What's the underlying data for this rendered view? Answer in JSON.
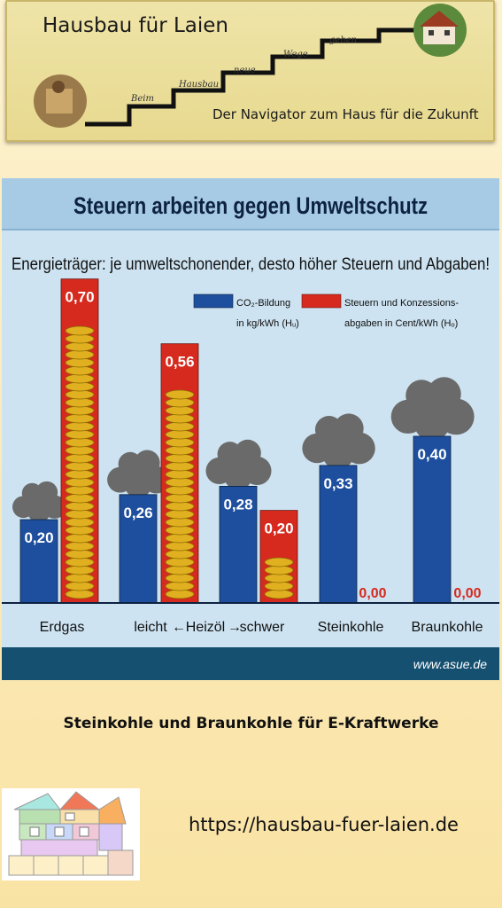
{
  "header": {
    "title": "Hausbau für Laien",
    "subtitle": "Der Navigator zum Haus für die Zukunft",
    "stairs": [
      "Beim",
      "Hausbau",
      "neue",
      "Wege",
      "gehen"
    ]
  },
  "chart_data": {
    "type": "bar",
    "title": "Steuern arbeiten gegen Umweltschutz",
    "subtitle": "Energieträger: je umweltschonender, desto höher Steuern und Abgaben!",
    "categories": [
      "Erdgas",
      "leicht",
      "schwer",
      "Steinkohle",
      "Braunkohle"
    ],
    "category_labels": [
      "Erdgas",
      "leicht",
      "Heizöl",
      "schwer",
      "Steinkohle",
      "Braunkohle"
    ],
    "series": [
      {
        "legend_line1": "CO₂-Bildung",
        "legend_line2": "in kg/kWh (Hᵤ)",
        "color": "#1e4f9e",
        "values": [
          0.2,
          0.26,
          0.28,
          0.33,
          0.4
        ],
        "labels": [
          "0,20",
          "0,26",
          "0,28",
          "0,33",
          "0,40"
        ]
      },
      {
        "legend_line1": "Steuern und Konzessions-",
        "legend_line2": "abgaben in Cent/kWh (Hₒ)",
        "color": "#d62a1e",
        "values": [
          0.7,
          0.56,
          0.2,
          0.0,
          0.0
        ],
        "labels": [
          "0,70",
          "0,56",
          "0,20",
          "0,00",
          "0,00"
        ]
      }
    ],
    "source": "www.asue.de"
  },
  "caption": "Steinkohle und Braunkohle für E-Kraftwerke",
  "url": "https://hausbau-fuer-laien.de"
}
